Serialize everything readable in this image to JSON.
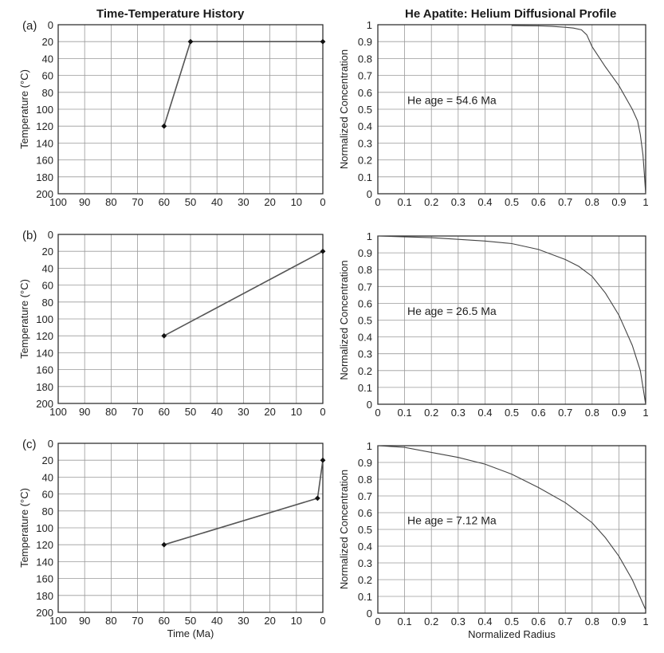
{
  "titles": {
    "left": "Time-Temperature History",
    "right": "He Apatite: Helium Diffusional Profile"
  },
  "colors": {
    "grid": "#9a9a9a",
    "axis": "#222222",
    "line": "#555555",
    "marker": "#111111"
  },
  "chart_data": [
    {
      "type": "line",
      "panel": "(a)",
      "xlabel": "",
      "ylabel": "Temperature (°C)",
      "xlim": [
        100,
        0
      ],
      "ylim": [
        200,
        0
      ],
      "x_ticks": [
        100,
        90,
        80,
        70,
        60,
        50,
        40,
        30,
        20,
        10,
        0
      ],
      "y_ticks": [
        0,
        20,
        40,
        60,
        80,
        100,
        120,
        140,
        160,
        180,
        200
      ],
      "grid": true,
      "series": [
        {
          "x": [
            60,
            50,
            0
          ],
          "y": [
            120,
            20,
            20
          ],
          "markers": true
        }
      ]
    },
    {
      "type": "line",
      "xlabel": "",
      "ylabel": "Normalized Concentration",
      "xlim": [
        0,
        1
      ],
      "ylim": [
        0,
        1
      ],
      "x_ticks": [
        "0",
        "0.1",
        "0.2",
        "0.3",
        "0.4",
        "0.5",
        "0.6",
        "0.7",
        "0.8",
        "0.9",
        "1"
      ],
      "y_ticks": [
        "0",
        "0.1",
        "0.2",
        "0.3",
        "0.4",
        "0.5",
        "0.6",
        "0.7",
        "0.8",
        "0.9",
        "1"
      ],
      "grid": true,
      "annotation": "He age = 54.6 Ma",
      "series": [
        {
          "x": [
            0.5,
            0.55,
            0.6,
            0.65,
            0.7,
            0.73,
            0.76,
            0.78,
            0.8,
            0.85,
            0.9,
            0.95,
            0.97,
            0.98,
            0.99,
            0.995,
            1.0
          ],
          "y": [
            0.995,
            0.994,
            0.993,
            0.99,
            0.985,
            0.98,
            0.97,
            0.94,
            0.87,
            0.75,
            0.64,
            0.5,
            0.43,
            0.35,
            0.23,
            0.12,
            0.0
          ],
          "markers": false
        }
      ]
    },
    {
      "type": "line",
      "panel": "(b)",
      "xlabel": "",
      "ylabel": "Temperature (°C)",
      "xlim": [
        100,
        0
      ],
      "ylim": [
        200,
        0
      ],
      "x_ticks": [
        100,
        90,
        80,
        70,
        60,
        50,
        40,
        30,
        20,
        10,
        0
      ],
      "y_ticks": [
        0,
        20,
        40,
        60,
        80,
        100,
        120,
        140,
        160,
        180,
        200
      ],
      "grid": true,
      "series": [
        {
          "x": [
            60,
            0
          ],
          "y": [
            120,
            20
          ],
          "markers": true
        }
      ]
    },
    {
      "type": "line",
      "xlabel": "",
      "ylabel": "Normalized Concentration",
      "xlim": [
        0,
        1
      ],
      "ylim": [
        0,
        1
      ],
      "x_ticks": [
        "0",
        "0.1",
        "0.2",
        "0.3",
        "0.4",
        "0.5",
        "0.6",
        "0.7",
        "0.8",
        "0.9",
        "1"
      ],
      "y_ticks": [
        "0",
        "0.1",
        "0.2",
        "0.3",
        "0.4",
        "0.5",
        "0.6",
        "0.7",
        "0.8",
        "0.9",
        "1"
      ],
      "grid": true,
      "annotation": "He age = 26.5 Ma",
      "series": [
        {
          "x": [
            0.0,
            0.1,
            0.2,
            0.3,
            0.4,
            0.5,
            0.6,
            0.7,
            0.75,
            0.8,
            0.85,
            0.9,
            0.95,
            0.98,
            1.0
          ],
          "y": [
            1.0,
            0.995,
            0.99,
            0.98,
            0.97,
            0.955,
            0.92,
            0.86,
            0.82,
            0.76,
            0.66,
            0.53,
            0.35,
            0.2,
            0.0
          ],
          "markers": false
        }
      ]
    },
    {
      "type": "line",
      "panel": "(c)",
      "xlabel": "Time (Ma)",
      "ylabel": "Temperature (°C)",
      "xlim": [
        100,
        0
      ],
      "ylim": [
        200,
        0
      ],
      "x_ticks": [
        100,
        90,
        80,
        70,
        60,
        50,
        40,
        30,
        20,
        10,
        0
      ],
      "y_ticks": [
        0,
        20,
        40,
        60,
        80,
        100,
        120,
        140,
        160,
        180,
        200
      ],
      "grid": true,
      "series": [
        {
          "x": [
            60,
            2,
            0
          ],
          "y": [
            120,
            65,
            20
          ],
          "markers": true
        }
      ]
    },
    {
      "type": "line",
      "xlabel": "Normalized Radius",
      "ylabel": "Normalized Concentration",
      "xlim": [
        0,
        1
      ],
      "ylim": [
        0,
        1
      ],
      "x_ticks": [
        "0",
        "0.1",
        "0.2",
        "0.3",
        "0.4",
        "0.5",
        "0.6",
        "0.7",
        "0.8",
        "0.9",
        "1"
      ],
      "y_ticks": [
        "0",
        "0.1",
        "0.2",
        "0.3",
        "0.4",
        "0.5",
        "0.6",
        "0.7",
        "0.8",
        "0.9",
        "1"
      ],
      "grid": true,
      "annotation": "He age = 7.12 Ma",
      "series": [
        {
          "x": [
            0.0,
            0.1,
            0.2,
            0.3,
            0.4,
            0.5,
            0.6,
            0.7,
            0.8,
            0.85,
            0.9,
            0.95,
            1.0
          ],
          "y": [
            1.0,
            0.99,
            0.96,
            0.93,
            0.89,
            0.83,
            0.75,
            0.66,
            0.54,
            0.45,
            0.34,
            0.2,
            0.02
          ],
          "markers": false
        }
      ]
    }
  ]
}
